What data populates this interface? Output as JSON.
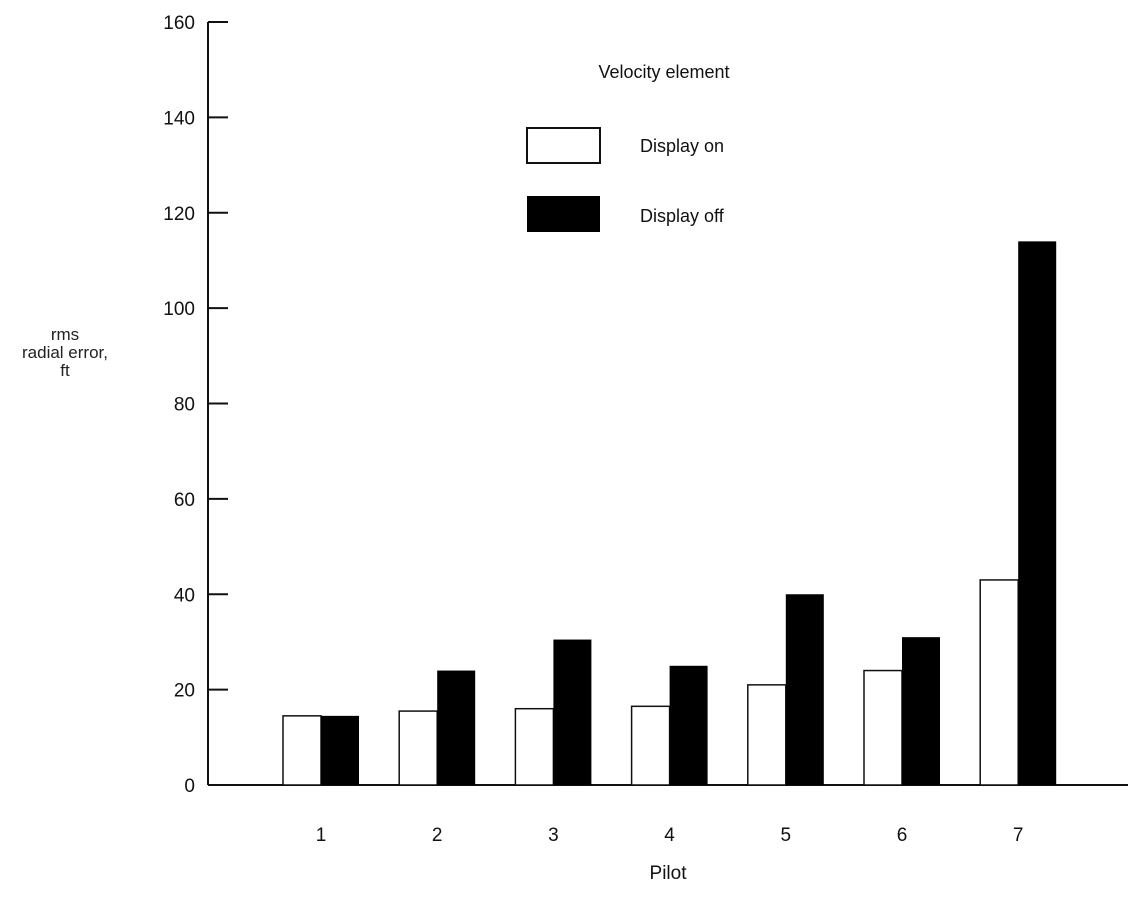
{
  "chart_data": {
    "type": "bar",
    "title": "",
    "xlabel": "Pilot",
    "ylabel_lines": [
      "rms",
      "radial error,",
      "ft"
    ],
    "legend_title": "Velocity element",
    "legend_position": "top-center",
    "grid": false,
    "ylim": [
      0,
      160
    ],
    "yticks": [
      0,
      20,
      40,
      60,
      80,
      100,
      120,
      140,
      160
    ],
    "categories": [
      "1",
      "2",
      "3",
      "4",
      "5",
      "6",
      "7"
    ],
    "series": [
      {
        "name": "Display on",
        "color": "#ffffff",
        "values": [
          14.5,
          15.5,
          16,
          16.5,
          21,
          24,
          43
        ]
      },
      {
        "name": "Display off",
        "color": "#000000",
        "values": [
          14.5,
          24,
          30.5,
          25,
          40,
          31,
          114
        ]
      }
    ]
  }
}
